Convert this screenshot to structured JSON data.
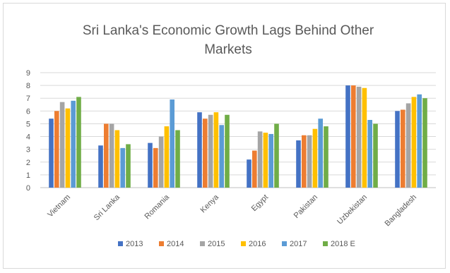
{
  "chart_data": {
    "type": "bar",
    "title_lines": [
      "Sri Lanka's Economic Growth Lags Behind Other",
      "Markets"
    ],
    "categories": [
      "Vietnam",
      "Sri Lanka",
      "Romania",
      "Kenya",
      "Egypt",
      "Pakistan",
      "Uzbekistan",
      "Bangladesh"
    ],
    "series": [
      {
        "name": "2013",
        "color": "#4472c4",
        "values": [
          5.4,
          3.3,
          3.5,
          5.9,
          2.2,
          3.7,
          8.0,
          6.0
        ]
      },
      {
        "name": "2014",
        "color": "#ed7d31",
        "values": [
          6.0,
          5.0,
          3.1,
          5.4,
          2.9,
          4.1,
          8.0,
          6.1
        ]
      },
      {
        "name": "2015",
        "color": "#a5a5a5",
        "values": [
          6.7,
          5.0,
          4.0,
          5.7,
          4.4,
          4.1,
          7.9,
          6.6
        ]
      },
      {
        "name": "2016",
        "color": "#ffc000",
        "values": [
          6.2,
          4.5,
          4.8,
          5.9,
          4.3,
          4.6,
          7.8,
          7.1
        ]
      },
      {
        "name": "2017",
        "color": "#5b9bd5",
        "values": [
          6.8,
          3.1,
          6.9,
          4.9,
          4.2,
          5.4,
          5.3,
          7.3
        ]
      },
      {
        "name": "2018 E",
        "color": "#70ad47",
        "values": [
          7.1,
          3.4,
          4.5,
          5.7,
          5.0,
          4.8,
          5.0,
          7.0
        ]
      }
    ],
    "y_ticks": [
      "0",
      "1",
      "2",
      "3",
      "4",
      "5",
      "6",
      "7",
      "8",
      "9"
    ],
    "ylim": [
      0,
      9
    ],
    "grid": true,
    "legend_position": "bottom"
  }
}
